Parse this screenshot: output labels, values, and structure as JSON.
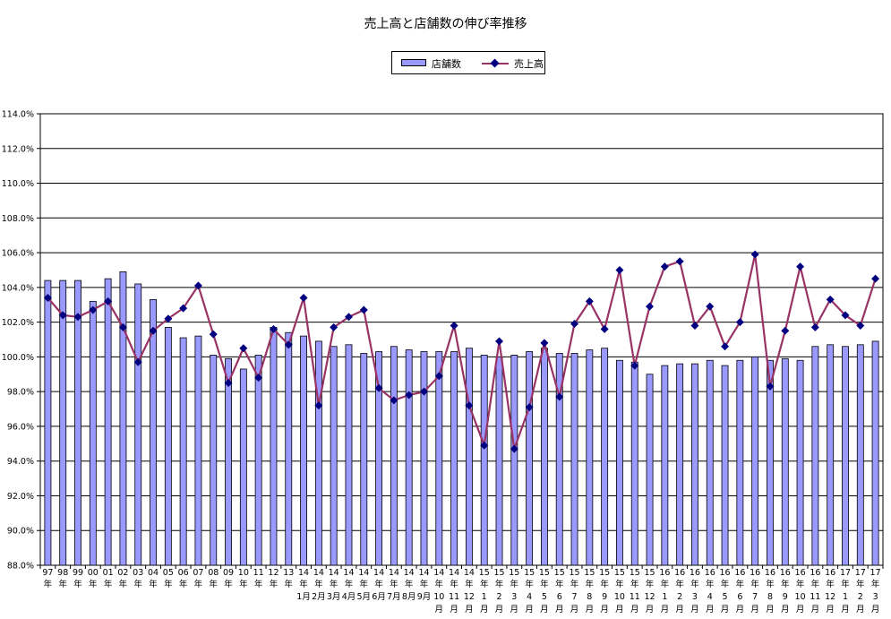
{
  "chart_data": {
    "type": "bar",
    "title": "売上高と店舗数の伸び率推移",
    "ylim": [
      88,
      114
    ],
    "y_ticks": [
      "88.0%",
      "90.0%",
      "92.0%",
      "94.0%",
      "96.0%",
      "98.0%",
      "100.0%",
      "102.0%",
      "104.0%",
      "106.0%",
      "108.0%",
      "110.0%",
      "112.0%",
      "114.0%"
    ],
    "grid": true,
    "legend_position": "top-center",
    "colors": {
      "bar": "#9999ff",
      "line": "#993366",
      "marker": "#000080"
    },
    "categories": [
      [
        "97",
        "年"
      ],
      [
        "98",
        "年"
      ],
      [
        "99",
        "年"
      ],
      [
        "00",
        "年"
      ],
      [
        "01",
        "年"
      ],
      [
        "02",
        "年"
      ],
      [
        "03",
        "年"
      ],
      [
        "04",
        "年"
      ],
      [
        "05",
        "年"
      ],
      [
        "06",
        "年"
      ],
      [
        "07",
        "年"
      ],
      [
        "08",
        "年"
      ],
      [
        "09",
        "年"
      ],
      [
        "10",
        "年"
      ],
      [
        "11",
        "年"
      ],
      [
        "12",
        "年"
      ],
      [
        "13",
        "年"
      ],
      [
        "14",
        "年",
        "1月"
      ],
      [
        "14",
        "年",
        "2月"
      ],
      [
        "14",
        "年",
        "3月"
      ],
      [
        "14",
        "年",
        "4月"
      ],
      [
        "14",
        "年",
        "5月"
      ],
      [
        "14",
        "年",
        "6月"
      ],
      [
        "14",
        "年",
        "7月"
      ],
      [
        "14",
        "年",
        "8月"
      ],
      [
        "14",
        "年",
        "9月"
      ],
      [
        "14",
        "年",
        "10",
        "月"
      ],
      [
        "14",
        "年",
        "11",
        "月"
      ],
      [
        "14",
        "年",
        "12",
        "月"
      ],
      [
        "15",
        "年",
        "1",
        "月"
      ],
      [
        "15",
        "年",
        "2",
        "月"
      ],
      [
        "15",
        "年",
        "3",
        "月"
      ],
      [
        "15",
        "年",
        "4",
        "月"
      ],
      [
        "15",
        "年",
        "5",
        "月"
      ],
      [
        "15",
        "年",
        "6",
        "月"
      ],
      [
        "15",
        "年",
        "7",
        "月"
      ],
      [
        "15",
        "年",
        "8",
        "月"
      ],
      [
        "15",
        "年",
        "9",
        "月"
      ],
      [
        "15",
        "年",
        "10",
        "月"
      ],
      [
        "15",
        "年",
        "11",
        "月"
      ],
      [
        "15",
        "年",
        "12",
        "月"
      ],
      [
        "16",
        "年",
        "1",
        "月"
      ],
      [
        "16",
        "年",
        "2",
        "月"
      ],
      [
        "16",
        "年",
        "3",
        "月"
      ],
      [
        "16",
        "年",
        "4",
        "月"
      ],
      [
        "16",
        "年",
        "5",
        "月"
      ],
      [
        "16",
        "年",
        "6",
        "月"
      ],
      [
        "16",
        "年",
        "7",
        "月"
      ],
      [
        "16",
        "年",
        "8",
        "月"
      ],
      [
        "16",
        "年",
        "9",
        "月"
      ],
      [
        "16",
        "年",
        "10",
        "月"
      ],
      [
        "16",
        "年",
        "11",
        "月"
      ],
      [
        "16",
        "年",
        "12",
        "月"
      ],
      [
        "17",
        "年",
        "1",
        "月"
      ],
      [
        "17",
        "年",
        "2",
        "月"
      ],
      [
        "17",
        "年",
        "3",
        "月"
      ]
    ],
    "series": [
      {
        "name": "店舗数",
        "type": "bar",
        "values": [
          104.4,
          104.4,
          104.4,
          103.2,
          104.5,
          104.9,
          104.2,
          103.3,
          101.7,
          101.1,
          101.2,
          100.1,
          99.9,
          99.3,
          100.1,
          101.7,
          101.4,
          101.2,
          100.9,
          100.6,
          100.7,
          100.2,
          100.3,
          100.6,
          100.4,
          100.3,
          100.3,
          100.3,
          100.5,
          100.1,
          100.0,
          100.1,
          100.3,
          100.5,
          100.2,
          100.2,
          100.4,
          100.5,
          99.8,
          99.7,
          99.0,
          99.5,
          99.6,
          99.6,
          99.8,
          99.5,
          99.8,
          100.0,
          99.8,
          99.9,
          99.8,
          100.6,
          100.7,
          100.6,
          100.7,
          100.9
        ]
      },
      {
        "name": "売上高",
        "type": "line",
        "values": [
          103.4,
          102.4,
          102.3,
          102.7,
          103.2,
          101.7,
          99.7,
          101.5,
          102.2,
          102.8,
          104.1,
          101.3,
          98.5,
          100.5,
          98.8,
          101.6,
          100.7,
          103.4,
          97.2,
          101.7,
          102.3,
          102.7,
          98.2,
          97.5,
          97.8,
          98.0,
          98.9,
          101.8,
          97.2,
          94.9,
          100.9,
          94.7,
          97.1,
          100.8,
          97.7,
          101.9,
          103.2,
          101.6,
          105.0,
          99.5,
          102.9,
          105.2,
          105.5,
          101.8,
          102.9,
          100.6,
          102.0,
          105.9,
          98.3,
          101.5,
          105.2,
          101.7,
          103.3,
          102.4,
          101.8,
          104.5
        ]
      }
    ]
  }
}
